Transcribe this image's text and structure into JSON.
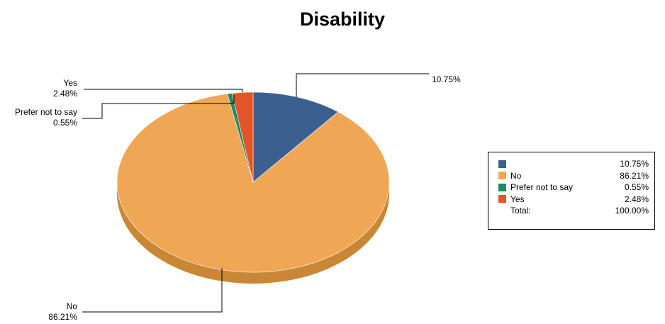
{
  "chart_data": {
    "type": "pie",
    "title": "Disability",
    "categories": [
      "",
      "No",
      "Prefer not to say",
      "Yes"
    ],
    "values": [
      10.75,
      86.21,
      0.55,
      2.48
    ],
    "colors": [
      "#3b5f8f",
      "#f0a755",
      "#1f8a66",
      "#e0552b"
    ],
    "side_colors": [
      "#2c476b",
      "#c98735",
      "#176a4e",
      "#b03f1d"
    ],
    "slice_labels": [
      {
        "name": "",
        "value": "10.75%"
      },
      {
        "name": "No",
        "value": "86.21%"
      },
      {
        "name": "Prefer not to say",
        "value": "0.55%"
      },
      {
        "name": "Yes",
        "value": "2.48%"
      }
    ],
    "legend": {
      "position": "right",
      "items": [
        {
          "name": "",
          "value": "10.75%"
        },
        {
          "name": "No",
          "value": "86.21%"
        },
        {
          "name": "Prefer not to say",
          "value": "0.55%"
        },
        {
          "name": "Yes",
          "value": "2.48%"
        }
      ],
      "total_label": "Total:",
      "total_value": "100.00%"
    }
  }
}
